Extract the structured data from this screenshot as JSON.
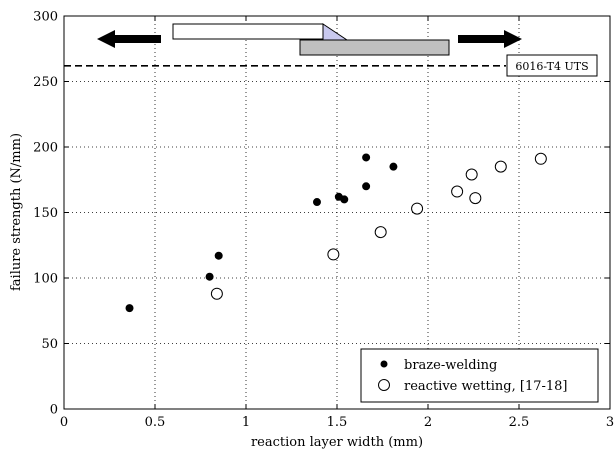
{
  "chart_data": {
    "type": "scatter",
    "title": "",
    "xlabel": "reaction layer width (mm)",
    "ylabel": "failure strength (N/mm)",
    "xlim": [
      0,
      3
    ],
    "ylim": [
      0,
      300
    ],
    "x_ticks": [
      0,
      0.5,
      1,
      1.5,
      2,
      2.5,
      3
    ],
    "x_tick_labels": [
      "0",
      "0.5",
      "1",
      "1.5",
      "2",
      "2.5",
      "3"
    ],
    "y_ticks": [
      0,
      50,
      100,
      150,
      200,
      250,
      300
    ],
    "y_tick_labels": [
      "0",
      "50",
      "100",
      "150",
      "200",
      "250",
      "300"
    ],
    "grid": true,
    "legend_position": "bottom-right",
    "series": [
      {
        "name": "braze-welding",
        "marker": "filled-circle",
        "color": "#000000",
        "points": [
          [
            0.36,
            77
          ],
          [
            0.8,
            101
          ],
          [
            0.85,
            117
          ],
          [
            1.39,
            158
          ],
          [
            1.51,
            162
          ],
          [
            1.54,
            160
          ],
          [
            1.66,
            170
          ],
          [
            1.66,
            192
          ],
          [
            1.81,
            185
          ]
        ]
      },
      {
        "name": "reactive wetting, [17-18]",
        "marker": "open-circle",
        "color": "#000000",
        "points": [
          [
            0.84,
            88
          ],
          [
            1.48,
            118
          ],
          [
            1.74,
            135
          ],
          [
            1.94,
            153
          ],
          [
            2.16,
            166
          ],
          [
            2.24,
            179
          ],
          [
            2.26,
            161
          ],
          [
            2.4,
            185
          ],
          [
            2.62,
            191
          ]
        ]
      }
    ],
    "reference_line": {
      "y": 262,
      "label": "6016-T4 UTS",
      "style": "dashed"
    }
  }
}
